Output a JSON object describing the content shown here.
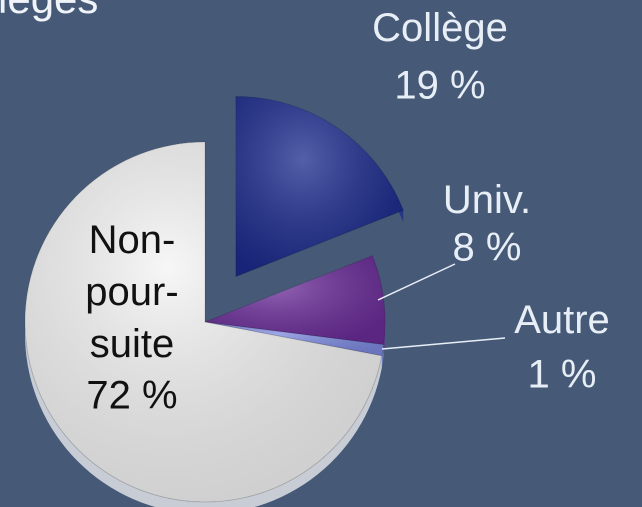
{
  "chart_data": {
    "type": "pie",
    "title": "lèges",
    "categories": [
      "Collège",
      "Univ.",
      "Autre",
      "Non-pour-suite"
    ],
    "values": [
      19,
      8,
      1,
      72
    ],
    "value_labels": [
      "19 %",
      "8 %",
      "1 %",
      "72 %"
    ],
    "colors": [
      "#1b2a8c",
      "#6b2d99",
      "#7d8ae0",
      "#f4f4f4"
    ],
    "exploded": [
      true,
      false,
      false,
      false
    ]
  }
}
